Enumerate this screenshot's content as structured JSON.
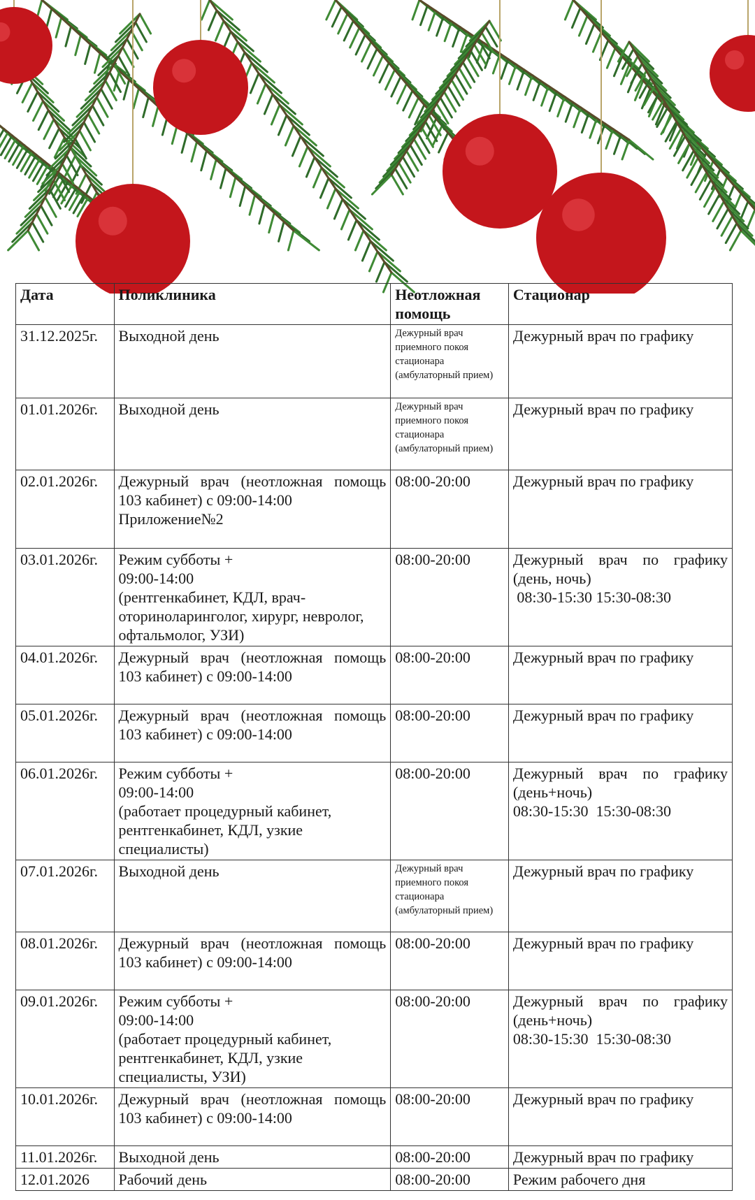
{
  "colors": {
    "ball": "#c4161c",
    "branch": "#2f6b2a",
    "border": "#333333"
  },
  "table": {
    "headers": [
      "Дата",
      "Поликлиника",
      "Неотложная помощь",
      "Стационар"
    ],
    "rows": [
      {
        "date": "31.12.2025г.",
        "clinic": "Выходной день",
        "urgent": "Дежурный врач приемного покоя стационара (амбулаторный прием)",
        "hospital": "Дежурный врач по графику"
      },
      {
        "date": "01.01.2026г.",
        "clinic": "Выходной день",
        "urgent": "Дежурный врач приемного покоя стационара (амбулаторный прием)",
        "hospital": "Дежурный врач по графику"
      },
      {
        "date": "02.01.2026г.",
        "clinic": "Дежурный врач (неотложная помощь 103 кабинет) с 09:00-14:00",
        "clinic_extra": "Приложение№2",
        "urgent": "08:00-20:00",
        "hospital": "Дежурный врач по графику"
      },
      {
        "date": "03.01.2026г.",
        "clinic": "Режим субботы +\n09:00-14:00\n(рентгенкабинет, КДЛ, врач-оториноларинголог, хирург, невролог, офтальмолог, УЗИ)",
        "urgent": "08:00-20:00",
        "hospital": "Дежурный врач по графику (день, ночь)",
        "hospital_extra": " 08:30-15:30 15:30-08:30"
      },
      {
        "date": "04.01.2026г.",
        "clinic": "Дежурный врач (неотложная помощь 103 кабинет) с 09:00-14:00",
        "urgent": "08:00-20:00",
        "hospital": "Дежурный врач по графику"
      },
      {
        "date": "05.01.2026г.",
        "clinic": "Дежурный врач (неотложная помощь 103 кабинет) с 09:00-14:00",
        "urgent": "08:00-20:00",
        "hospital": "Дежурный врач по графику"
      },
      {
        "date": "06.01.2026г.",
        "clinic": "Режим субботы +\n09:00-14:00\n(работает процедурный кабинет, рентгенкабинет, КДЛ, узкие специалисты)",
        "urgent": "08:00-20:00",
        "hospital": "Дежурный врач по графику (день+ночь)",
        "hospital_extra": "08:30-15:30  15:30-08:30"
      },
      {
        "date": "07.01.2026г.",
        "clinic": "Выходной день",
        "urgent": "Дежурный врач приемного покоя стационара (амбулаторный прием)",
        "hospital": "Дежурный врач по графику"
      },
      {
        "date": "08.01.2026г.",
        "clinic": "Дежурный врач (неотложная помощь 103 кабинет) с 09:00-14:00",
        "urgent": "08:00-20:00",
        "hospital": "Дежурный врач по графику"
      },
      {
        "date": "09.01.2026г.",
        "clinic": "Режим субботы +\n09:00-14:00\n(работает процедурный кабинет, рентгенкабинет, КДЛ, узкие специалисты, УЗИ)",
        "urgent": "08:00-20:00",
        "hospital": "Дежурный врач по графику (день+ночь)",
        "hospital_extra": "08:30-15:30  15:30-08:30"
      },
      {
        "date": "10.01.2026г.",
        "clinic": "Дежурный врач (неотложная помощь 103 кабинет) с 09:00-14:00",
        "urgent": "08:00-20:00",
        "hospital": "Дежурный врач по графику"
      },
      {
        "date": "11.01.2026г.",
        "clinic": "Выходной день",
        "urgent": "08:00-20:00",
        "hospital": "Дежурный врач по графику"
      },
      {
        "date": "12.01.2026",
        "clinic": "Рабочий день",
        "urgent": "08:00-20:00",
        "hospital": "Режим рабочего дня"
      }
    ]
  }
}
